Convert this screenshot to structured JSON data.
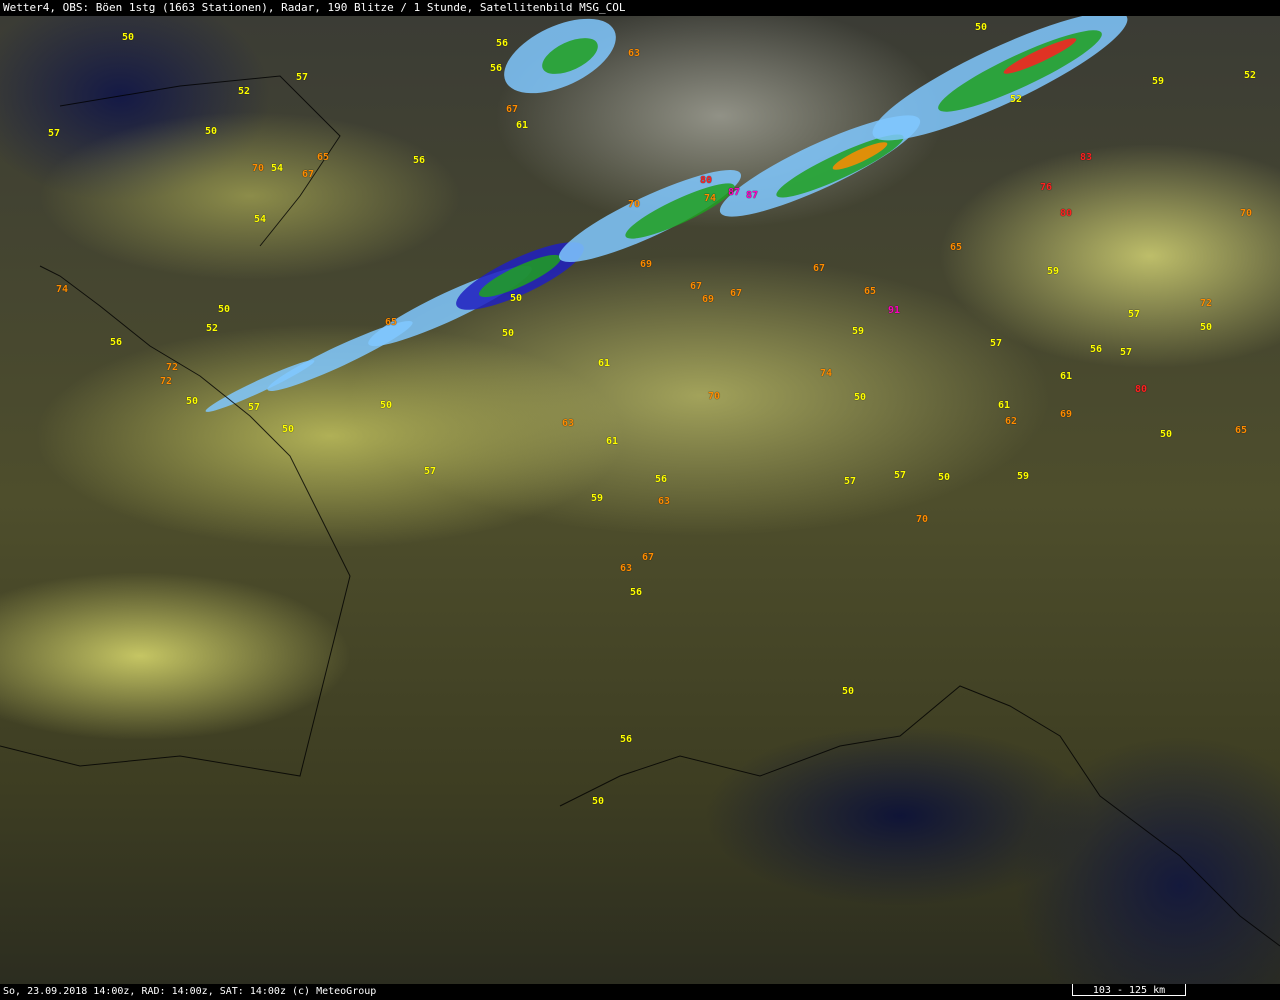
{
  "header": {
    "title": "Wetter4, OBS: Böen 1stg (1663 Stationen), Radar, 190 Blitze / 1 Stunde, Satellitenbild MSG_COL"
  },
  "footer": {
    "info": "So, 23.09.2018 14:00z, RAD: 14:00z, SAT: 14:00z (c) MeteoGroup",
    "scale": "103 - 125 km"
  },
  "colors": {
    "low": "#ffff00",
    "mid": "#ff8c00",
    "high": "#ff2020",
    "extreme": "#ff00c0",
    "radar_light": "#80c8ff",
    "radar_mid": "#2020c0",
    "radar_strong": "#20a020"
  },
  "stations": [
    "50",
    "57",
    "52",
    "57",
    "50",
    "70",
    "54",
    "67",
    "65",
    "56",
    "74",
    "69",
    "65",
    "56",
    "52",
    "50",
    "54",
    "72",
    "56",
    "50",
    "57",
    "50",
    "50",
    "57",
    "61",
    "63",
    "59",
    "74",
    "61",
    "87",
    "56",
    "63",
    "67",
    "70",
    "80",
    "50",
    "59",
    "69",
    "67",
    "52",
    "59",
    "57",
    "56",
    "61",
    "59",
    "50",
    "69",
    "67",
    "65",
    "70",
    "50",
    "56",
    "63",
    "57",
    "72",
    "67",
    "50",
    "57",
    "50",
    "61",
    "70",
    "80",
    "59",
    "57",
    "65",
    "72",
    "50",
    "57",
    "63",
    "56",
    "50",
    "56",
    "67",
    "70",
    "65",
    "50",
    "50",
    "61",
    "74",
    "62",
    "87",
    "91",
    "83",
    "76",
    "80",
    "52"
  ]
}
